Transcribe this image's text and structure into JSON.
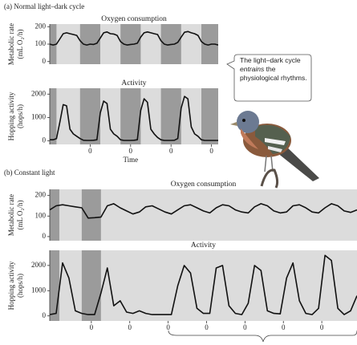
{
  "panel_labels": [
    "(a) Normal light–dark cycle",
    "(b) Constant light"
  ],
  "callout": {
    "before": "The light–dark cycle ",
    "emphasis": "entrains",
    "after": " the physiological rhythms."
  },
  "chart_data": [
    {
      "type": "line",
      "title": "Oxygen consumption",
      "ylabel": [
        "Metabolic rate",
        "(mL O₂/h)"
      ],
      "color": "#111111",
      "background": "#dcdcdc",
      "dark_color": "#9b9b9b",
      "x": [
        0,
        2,
        4,
        6,
        8,
        10,
        12,
        14,
        16,
        18,
        20,
        22,
        24,
        26,
        28,
        30,
        32,
        34,
        36,
        38,
        40,
        42,
        44,
        46,
        48,
        50,
        52,
        54,
        56,
        58,
        60,
        62,
        64,
        66,
        68,
        70,
        72,
        74,
        76,
        78,
        80,
        82,
        84,
        86,
        88,
        90,
        92,
        94,
        96,
        98,
        100
      ],
      "values": [
        100,
        95,
        100,
        130,
        160,
        165,
        160,
        155,
        150,
        120,
        100,
        95,
        100,
        98,
        105,
        135,
        165,
        170,
        160,
        158,
        150,
        115,
        100,
        95,
        98,
        100,
        105,
        140,
        165,
        170,
        165,
        160,
        155,
        120,
        100,
        95,
        98,
        100,
        110,
        140,
        168,
        172,
        165,
        160,
        150,
        115,
        100,
        95,
        100,
        100,
        95
      ],
      "dark_periods": [
        [
          0,
          4
        ],
        [
          18,
          30
        ],
        [
          42,
          54
        ],
        [
          66,
          78
        ],
        [
          90,
          100
        ]
      ],
      "xlim": [
        0,
        100
      ],
      "ylim": [
        -15,
        215
      ],
      "yticks": [
        0,
        100,
        200
      ]
    },
    {
      "type": "line",
      "title": "Activity",
      "ylabel": [
        "Hopping activity",
        "(hops/h)"
      ],
      "xlabel": "Time",
      "color": "#111111",
      "background": "#dcdcdc",
      "dark_color": "#9b9b9b",
      "x": [
        0,
        2,
        4,
        6,
        8,
        10,
        12,
        14,
        16,
        18,
        20,
        22,
        24,
        26,
        28,
        30,
        32,
        34,
        36,
        38,
        40,
        42,
        44,
        46,
        48,
        50,
        52,
        54,
        56,
        58,
        60,
        62,
        64,
        66,
        68,
        70,
        72,
        74,
        76,
        78,
        80,
        82,
        84,
        86,
        88,
        90,
        92,
        94,
        96,
        98,
        100
      ],
      "values": [
        50,
        50,
        100,
        800,
        1550,
        1500,
        500,
        300,
        200,
        100,
        30,
        20,
        20,
        30,
        50,
        1200,
        1700,
        1600,
        500,
        300,
        200,
        50,
        20,
        20,
        20,
        30,
        50,
        1300,
        1800,
        1650,
        500,
        300,
        150,
        50,
        20,
        20,
        20,
        30,
        100,
        1400,
        1900,
        1800,
        600,
        300,
        200,
        50,
        20,
        20,
        20,
        20,
        20
      ],
      "dark_periods": [
        [
          0,
          4
        ],
        [
          18,
          30
        ],
        [
          42,
          54
        ],
        [
          66,
          78
        ],
        [
          90,
          100
        ]
      ],
      "xlim": [
        0,
        100
      ],
      "ylim": [
        -150,
        2250
      ],
      "yticks": [
        0,
        1000,
        2000
      ],
      "xticks": [
        {
          "value": 24,
          "label": "0"
        },
        {
          "value": 48,
          "label": "0"
        },
        {
          "value": 72,
          "label": "0"
        },
        {
          "value": 96,
          "label": "0"
        }
      ]
    },
    {
      "type": "line",
      "title": "Oxygen consumption",
      "ylabel": [
        "Metabolic rate",
        "(mL O₂/h)"
      ],
      "color": "#111111",
      "background": "#dcdcdc",
      "dark_color": "#9b9b9b",
      "x": [
        -2,
        2,
        6,
        10,
        14,
        18,
        22,
        26,
        30,
        34,
        38,
        42,
        46,
        50,
        54,
        58,
        62,
        66,
        70,
        74,
        78,
        82,
        86,
        90,
        94,
        98,
        102,
        106,
        110,
        114,
        118,
        122,
        126,
        130,
        134,
        138,
        142,
        146,
        150,
        154,
        158,
        162,
        166,
        170,
        174,
        178,
        182,
        186,
        190
      ],
      "values": [
        130,
        150,
        155,
        150,
        145,
        140,
        90,
        92,
        95,
        150,
        160,
        140,
        125,
        110,
        120,
        145,
        150,
        135,
        120,
        110,
        130,
        150,
        155,
        140,
        125,
        115,
        140,
        155,
        150,
        130,
        120,
        115,
        145,
        160,
        150,
        125,
        115,
        120,
        150,
        155,
        140,
        120,
        115,
        140,
        160,
        150,
        125,
        118,
        130
      ],
      "dark_periods": [
        [
          -2,
          4
        ],
        [
          18,
          30
        ]
      ],
      "xlim": [
        -2,
        190
      ],
      "ylim": [
        -20,
        230
      ],
      "yticks": [
        0,
        100,
        200
      ]
    },
    {
      "type": "line",
      "title": "Activity",
      "ylabel": [
        "Hopping activity",
        "(hops/h)"
      ],
      "color": "#111111",
      "background": "#dcdcdc",
      "dark_color": "#9b9b9b",
      "x": [
        -2,
        2,
        6,
        10,
        14,
        18,
        22,
        26,
        30,
        34,
        38,
        42,
        46,
        50,
        54,
        58,
        62,
        66,
        70,
        74,
        78,
        82,
        86,
        90,
        94,
        98,
        102,
        106,
        110,
        114,
        118,
        122,
        126,
        130,
        134,
        138,
        142,
        146,
        150,
        154,
        158,
        162,
        166,
        170,
        174,
        178,
        182,
        186,
        190
      ],
      "values": [
        50,
        100,
        2100,
        1500,
        200,
        100,
        50,
        50,
        900,
        1900,
        400,
        600,
        150,
        100,
        200,
        100,
        50,
        50,
        50,
        50,
        1200,
        2000,
        1700,
        300,
        100,
        100,
        1900,
        2000,
        400,
        100,
        50,
        500,
        2000,
        1800,
        200,
        100,
        80,
        1500,
        2100,
        600,
        100,
        50,
        300,
        2400,
        2200,
        300,
        50,
        200,
        800
      ],
      "dark_periods": [
        [
          -2,
          4
        ],
        [
          18,
          30
        ]
      ],
      "xlim": [
        -2,
        190
      ],
      "ylim": [
        -200,
        2600
      ],
      "yticks": [
        0,
        1000,
        2000
      ],
      "xticks": [
        {
          "value": 24,
          "label": "0"
        },
        {
          "value": 48,
          "label": "0"
        },
        {
          "value": 72,
          "label": "0"
        },
        {
          "value": 96,
          "label": "0"
        },
        {
          "value": 120,
          "label": "0"
        },
        {
          "value": 144,
          "label": "0"
        },
        {
          "value": 168,
          "label": "0"
        }
      ]
    }
  ]
}
